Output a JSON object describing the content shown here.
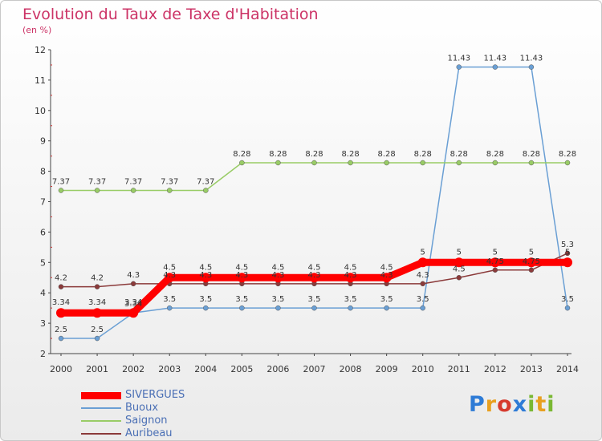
{
  "title": "Evolution du Taux de Taxe d'Habitation",
  "unit": "(en %)",
  "logo": {
    "text": "Proxiti",
    "colors": [
      "#2e7bd6",
      "#e8a020",
      "#d63a2e",
      "#2e7bd6",
      "#7ab833",
      "#e8a020",
      "#7ab833"
    ]
  },
  "chart_data": {
    "type": "line",
    "x": [
      "2000",
      "2001",
      "2002",
      "2003",
      "2004",
      "2005",
      "2006",
      "2007",
      "2008",
      "2009",
      "2010",
      "2011",
      "2012",
      "2013",
      "2014"
    ],
    "ylim": [
      2,
      12
    ],
    "yticks": [
      2,
      3,
      4,
      5,
      6,
      7,
      8,
      9,
      10,
      11,
      12
    ],
    "grid": false,
    "legend_position": "bottom-left",
    "series": [
      {
        "name": "SIVERGUES",
        "color": "#ff0000",
        "values": [
          3.34,
          3.34,
          3.34,
          4.5,
          4.5,
          4.5,
          4.5,
          4.5,
          4.5,
          4.5,
          5,
          5,
          5,
          5,
          5
        ],
        "labels": [
          "3.34",
          "3.34",
          "3.34",
          "4.5",
          "4.5",
          "4.5",
          "4.5",
          "4.5",
          "4.5",
          "4.5",
          "5",
          "5",
          "5",
          "5",
          "5"
        ]
      },
      {
        "name": "Buoux",
        "color": "#6a9fd4",
        "values": [
          2.5,
          2.5,
          3.34,
          3.5,
          3.5,
          3.5,
          3.5,
          3.5,
          3.5,
          3.5,
          3.5,
          11.43,
          11.43,
          11.43,
          3.5
        ],
        "labels": [
          "2.5",
          "2.5",
          "3.34",
          "3.5",
          "3.5",
          "3.5",
          "3.5",
          "3.5",
          "3.5",
          "3.5",
          "3.5",
          "11.43",
          "11.43",
          "11.43",
          "3.5"
        ]
      },
      {
        "name": "Saignon",
        "color": "#99cc66",
        "values": [
          7.37,
          7.37,
          7.37,
          7.37,
          7.37,
          8.28,
          8.28,
          8.28,
          8.28,
          8.28,
          8.28,
          8.28,
          8.28,
          8.28,
          8.28
        ],
        "labels": [
          "7.37",
          "7.37",
          "7.37",
          "7.37",
          "7.37",
          "8.28",
          "8.28",
          "8.28",
          "8.28",
          "8.28",
          "8.28",
          "8.28",
          "8.28",
          "8.28",
          "8.28"
        ]
      },
      {
        "name": "Auribeau",
        "color": "#8b3a3a",
        "values": [
          4.2,
          4.2,
          4.3,
          4.3,
          4.3,
          4.3,
          4.3,
          4.3,
          4.3,
          4.3,
          4.3,
          4.5,
          4.75,
          4.75,
          5.3
        ],
        "labels": [
          "4.2",
          "4.2",
          "4.3",
          "4.3",
          "4.3",
          "4.3",
          "4.3",
          "4.3",
          "4.3",
          "4.3",
          "4.3",
          "4.5",
          "4.75",
          "4.75",
          "5.3"
        ]
      }
    ]
  }
}
